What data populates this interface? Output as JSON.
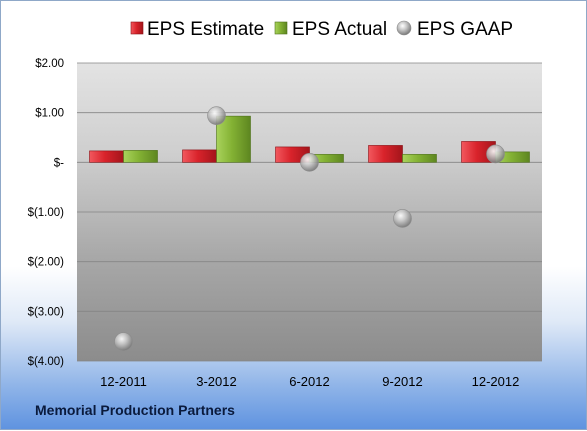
{
  "company_name": "Memorial Production Partners",
  "colors": {
    "estimate": "#d9232b",
    "actual": "#84b234",
    "gaap": "#b8b8b8"
  },
  "chart_data": {
    "type": "bar",
    "title": "",
    "xlabel": "",
    "ylabel": "",
    "categories": [
      "12-2011",
      "3-2012",
      "6-2012",
      "9-2012",
      "12-2012"
    ],
    "series": [
      {
        "name": "EPS Estimate",
        "kind": "bar",
        "values": [
          0.23,
          0.25,
          0.31,
          0.34,
          0.42
        ]
      },
      {
        "name": "EPS Actual",
        "kind": "bar",
        "values": [
          0.24,
          0.93,
          0.16,
          0.16,
          0.21
        ]
      },
      {
        "name": "EPS GAAP",
        "kind": "scatter",
        "values": [
          -3.61,
          0.94,
          0.0,
          -1.13,
          0.17
        ]
      }
    ],
    "ylim": [
      -4,
      2
    ],
    "yticks": [
      2,
      1,
      0,
      -1,
      -2,
      -3,
      -4
    ],
    "ytick_labels": [
      "$2.00",
      "$1.00",
      "$-",
      "$(1.00)",
      "$(2.00)",
      "$(3.00)",
      "$(4.00)"
    ],
    "grid": true,
    "legend_position": "top"
  }
}
